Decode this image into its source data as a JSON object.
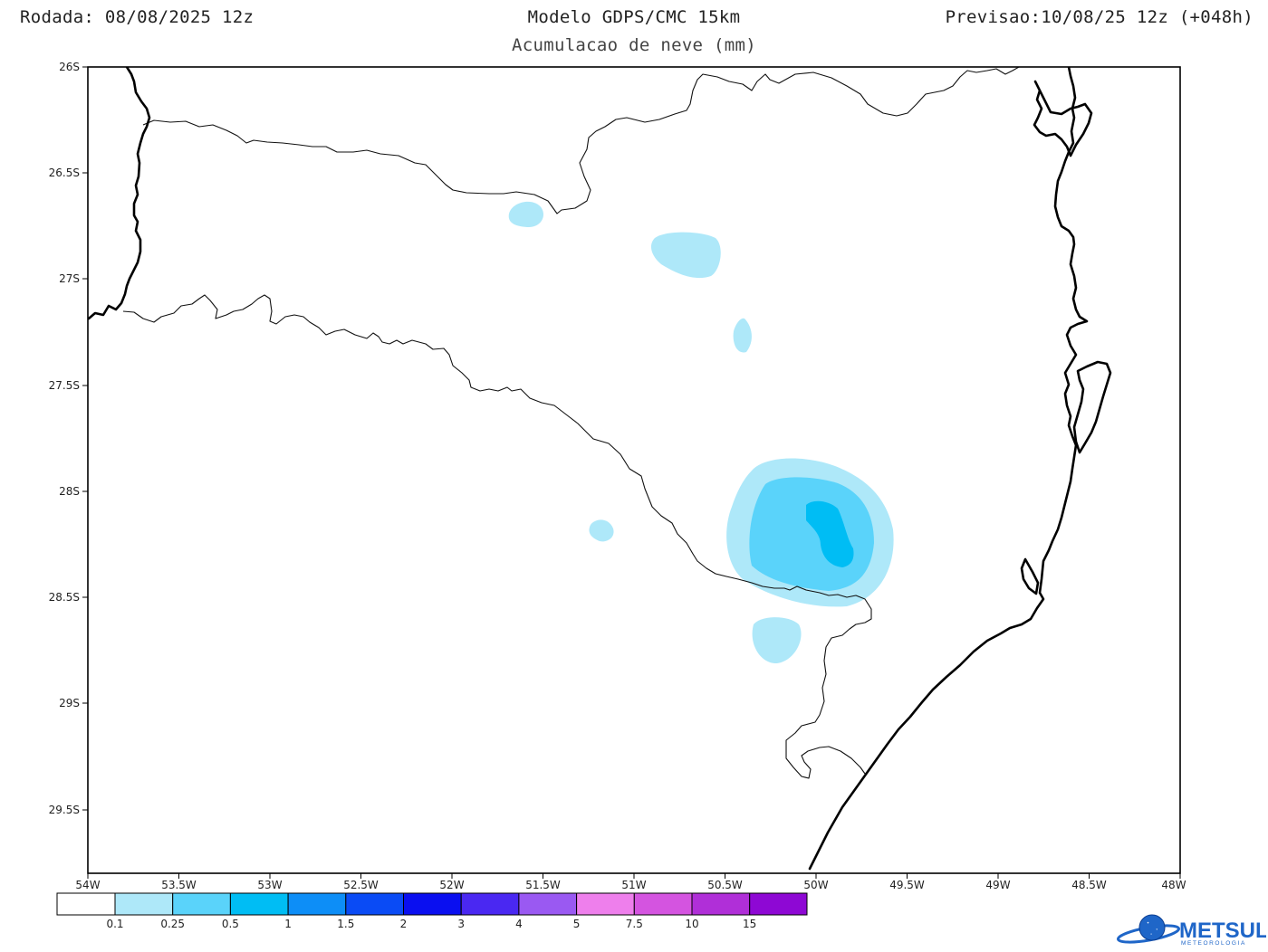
{
  "header": {
    "run_label": "Rodada: 08/08/2025 12z",
    "model_label": "Modelo GDPS/CMC 15km",
    "subtitle": "Acumulacao de neve (mm)",
    "valid_label": "Previsao:10/08/25 12z (+048h)"
  },
  "map": {
    "lat_ticks": [
      "26S",
      "26.5S",
      "27S",
      "27.5S",
      "28S",
      "28.5S",
      "29S",
      "29.5S"
    ],
    "lon_ticks": [
      "54W",
      "53.5W",
      "53W",
      "52.5W",
      "52W",
      "51.5W",
      "51W",
      "50.5W",
      "50W",
      "49.5W",
      "49W",
      "48.5W",
      "48W"
    ],
    "snow_areas": [
      {
        "level": "0.1-0.25",
        "area": "northwest near state border"
      },
      {
        "level": "0.1-0.25",
        "area": "central highlands"
      },
      {
        "level": "0.1-0.25",
        "area": "central small cell"
      },
      {
        "level": "0.5-1",
        "area": "Serra Geral / São Joaquim plateau"
      },
      {
        "level": "0.1-0.25",
        "area": "south of border near 50.3W"
      },
      {
        "level": "0.1-0.25",
        "area": "small cell near 51.2W"
      }
    ]
  },
  "colorbar": {
    "labels": [
      "0.1",
      "0.25",
      "0.5",
      "1",
      "1.5",
      "2",
      "3",
      "4",
      "5",
      "7.5",
      "10",
      "15"
    ],
    "colors": [
      "#ffffff",
      "#aee8f9",
      "#5ad3fa",
      "#00bdf4",
      "#0d8ef7",
      "#0a4bf5",
      "#0a0ff0",
      "#4a28f2",
      "#9a59f2",
      "#ee7fec",
      "#d454e0",
      "#b02fd8",
      "#8e08d4"
    ]
  },
  "logo": {
    "brand": "METSUL",
    "tagline": "METEOROLOGIA"
  }
}
